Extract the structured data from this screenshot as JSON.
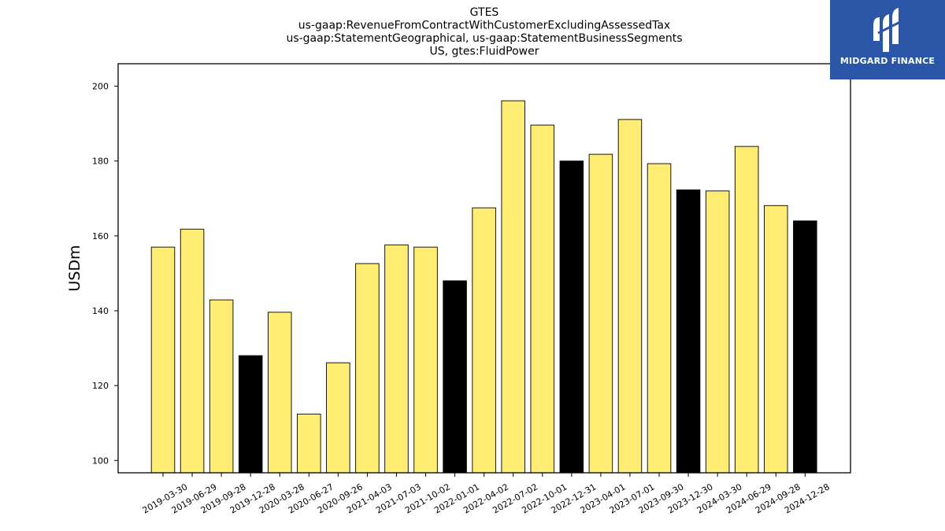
{
  "logo": {
    "text": "MIDGARD FINANCE",
    "color": "#2b56a8"
  },
  "chart_data": {
    "type": "bar",
    "title": [
      "GTES",
      "us-gaap:RevenueFromContractWithCustomerExcludingAssessedTax",
      "us-gaap:StatementGeographical, us-gaap:StatementBusinessSegments",
      "US, gtes:FluidPower"
    ],
    "xlabel": "",
    "ylabel": "USDm",
    "ylim": [
      96.7,
      206
    ],
    "yticks": [
      100,
      120,
      140,
      160,
      180,
      200
    ],
    "grid": false,
    "categories": [
      "2019-03-30",
      "2019-06-29",
      "2019-09-28",
      "2019-12-28",
      "2020-03-28",
      "2020-06-27",
      "2020-09-26",
      "2021-04-03",
      "2021-07-03",
      "2021-10-02",
      "2022-01-01",
      "2022-04-02",
      "2022-07-02",
      "2022-10-01",
      "2022-12-31",
      "2023-04-01",
      "2023-07-01",
      "2023-09-30",
      "2023-12-30",
      "2024-03-30",
      "2024-06-29",
      "2024-09-28",
      "2024-12-28"
    ],
    "values": [
      157.0,
      161.8,
      142.9,
      128.0,
      139.6,
      112.4,
      126.1,
      152.6,
      157.6,
      157.0,
      148.0,
      167.5,
      196.1,
      189.6,
      180.0,
      181.8,
      191.1,
      179.3,
      172.3,
      172.0,
      183.9,
      168.1,
      164.0
    ],
    "highlight": [
      false,
      false,
      false,
      true,
      false,
      false,
      false,
      false,
      false,
      false,
      true,
      false,
      false,
      false,
      true,
      false,
      false,
      false,
      true,
      false,
      false,
      false,
      true
    ],
    "colors": {
      "bar": "#ffec73",
      "highlight": "#000000",
      "edge": "#000000"
    }
  }
}
